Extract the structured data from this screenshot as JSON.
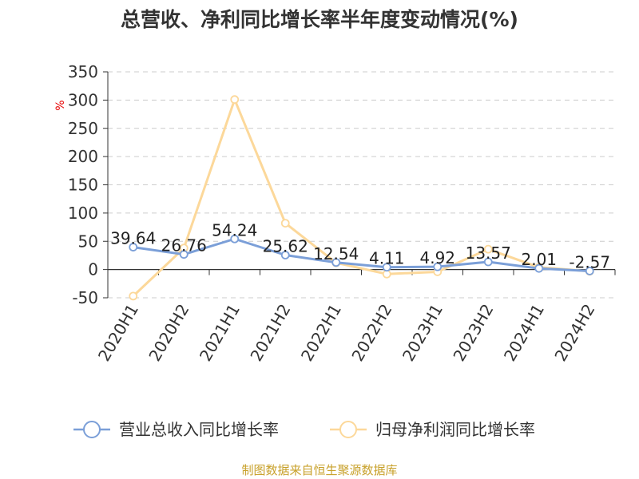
{
  "chart_data": {
    "type": "line",
    "title": "总营收、净利同比增长率半年度变动情况(%)",
    "ylabel": "%",
    "categories": [
      "2020H1",
      "2020H2",
      "2021H1",
      "2021H2",
      "2022H1",
      "2022H2",
      "2023H1",
      "2023H2",
      "2024H1",
      "2024H2"
    ],
    "ylim": [
      -50,
      350
    ],
    "yticks": [
      350,
      300,
      250,
      200,
      150,
      100,
      50,
      0,
      -50
    ],
    "grid": true,
    "legend_position": "bottom",
    "series": [
      {
        "name": "营业总收入同比增长率",
        "color": "#7b9fd8",
        "values": [
          39.64,
          26.76,
          54.24,
          25.62,
          12.54,
          4.11,
          4.92,
          13.57,
          2.01,
          -2.57
        ],
        "labels": [
          "39.64",
          "26.76",
          "54.24",
          "25.62",
          "12.54",
          "4.11",
          "4.92",
          "13.57",
          "2.01",
          "-2.57"
        ]
      },
      {
        "name": "归母净利润同比增长率",
        "color": "#fcd89a",
        "values": [
          -47,
          38,
          301,
          82,
          12,
          -8,
          -4,
          36,
          4,
          -3
        ]
      }
    ]
  },
  "source": "制图数据来自恒生聚源数据库"
}
